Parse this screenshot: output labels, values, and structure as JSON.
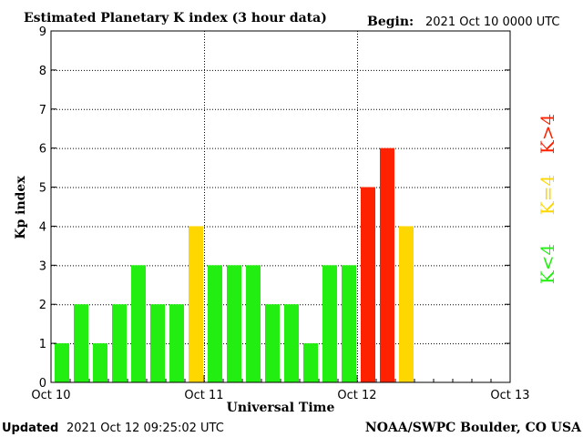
{
  "header": {
    "title": "Estimated Planetary K index (3 hour data)",
    "begin_label": "Begin:",
    "begin_value": "2021 Oct 10 0000 UTC"
  },
  "footer": {
    "updated_label": "Updated",
    "updated_value": "2021 Oct 12 09:25:02 UTC",
    "credit": "NOAA/SWPC Boulder, CO USA"
  },
  "legend": {
    "low": "K<4",
    "equal": "K=4",
    "high": "K>4"
  },
  "colors": {
    "low": "#22ee11",
    "equal": "#ffd700",
    "high": "#ff2200",
    "axis": "#000000",
    "grid": "#000000"
  },
  "chart_data": {
    "type": "bar",
    "title": "Estimated Planetary K index (3 hour data)",
    "xlabel": "Universal Time",
    "ylabel": "Kp index",
    "ylim": [
      0,
      9
    ],
    "yticks": [
      "0",
      "1",
      "2",
      "3",
      "4",
      "5",
      "6",
      "7",
      "8",
      "9"
    ],
    "xticks": [
      "Oct 10",
      "Oct 11",
      "Oct 12",
      "Oct 13"
    ],
    "bins_per_day": 8,
    "total_bins": 24,
    "grid": true,
    "values": [
      1,
      2,
      1,
      2,
      3,
      2,
      2,
      4,
      3,
      3,
      3,
      2,
      2,
      1,
      3,
      3,
      5,
      6,
      4
    ]
  }
}
